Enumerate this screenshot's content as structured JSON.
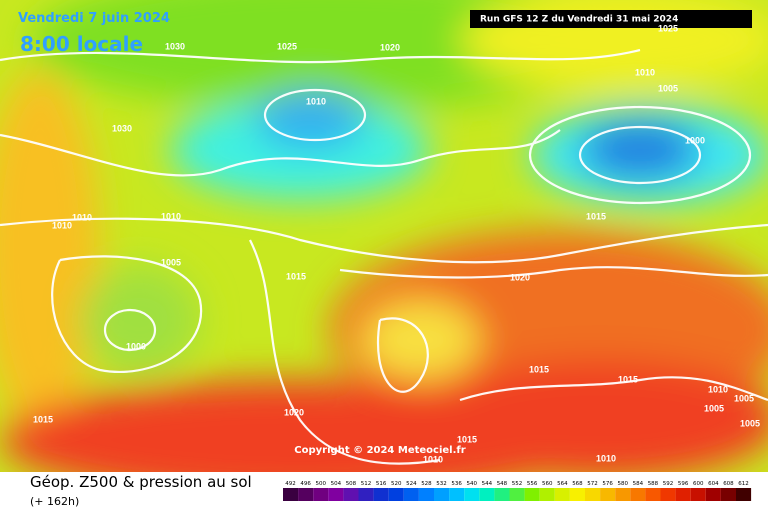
{
  "header": {
    "date": "Vendredi 7 juin 2024",
    "time": "8:00 locale",
    "run": "Run GFS 12 Z du Vendredi 31 mai 2024"
  },
  "isobar_labels": [
    "1030",
    "1025",
    "1020",
    "1025",
    "1010",
    "1005",
    "1010",
    "1030",
    "1000",
    "1015",
    "1010",
    "1010",
    "1010",
    "1005",
    "1015",
    "1020",
    "1000",
    "1015",
    "1015",
    "1010",
    "1005",
    "1005",
    "1005",
    "1020",
    "1015",
    "1015",
    "1010",
    "1010"
  ],
  "copyright": "Copyright © 2024 Meteociel.fr",
  "footer": {
    "title": "Géop. Z500 & pression au sol",
    "lead": "(+ 162h)"
  },
  "scale": [
    492,
    496,
    500,
    504,
    508,
    512,
    516,
    520,
    524,
    528,
    532,
    536,
    540,
    544,
    548,
    552,
    556,
    560,
    564,
    568,
    572,
    576,
    580,
    584,
    588,
    592,
    596,
    600,
    604,
    608,
    612
  ]
}
